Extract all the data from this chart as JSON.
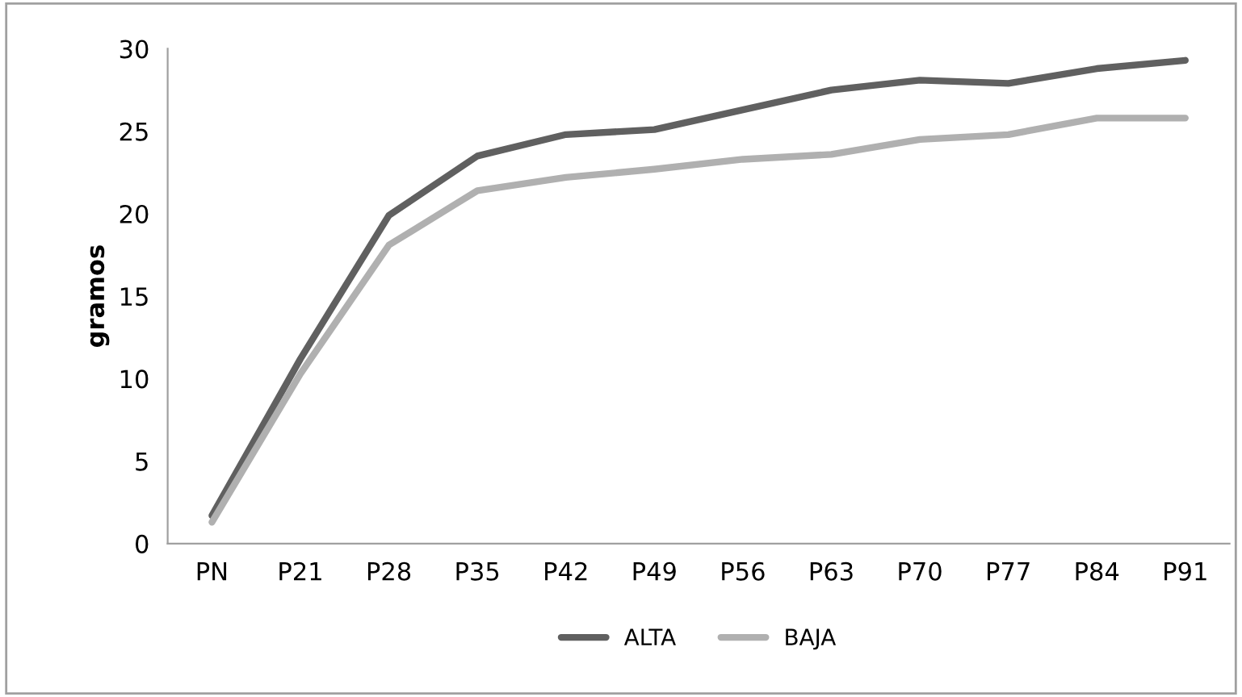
{
  "chart_data": {
    "type": "line",
    "ylabel": "gramos",
    "categories": [
      "PN",
      "P21",
      "P28",
      "P35",
      "P42",
      "P49",
      "P56",
      "P63",
      "P70",
      "P77",
      "P84",
      "P91"
    ],
    "series": [
      {
        "name": "ALTA",
        "color": "#606060",
        "values": [
          1.7,
          11.2,
          19.9,
          23.5,
          24.8,
          25.1,
          26.3,
          27.5,
          28.1,
          27.9,
          28.8,
          29.3
        ]
      },
      {
        "name": "BAJA",
        "color": "#b0b0b0",
        "values": [
          1.3,
          10.3,
          18.1,
          21.4,
          22.2,
          22.7,
          23.3,
          23.6,
          24.5,
          24.8,
          25.8,
          25.8
        ]
      }
    ],
    "ylim": [
      0,
      30
    ],
    "yticks": [
      0,
      5,
      10,
      15,
      20,
      25,
      30
    ],
    "grid": false,
    "legend": "bottom",
    "marker": "none",
    "line_style": "solid"
  }
}
